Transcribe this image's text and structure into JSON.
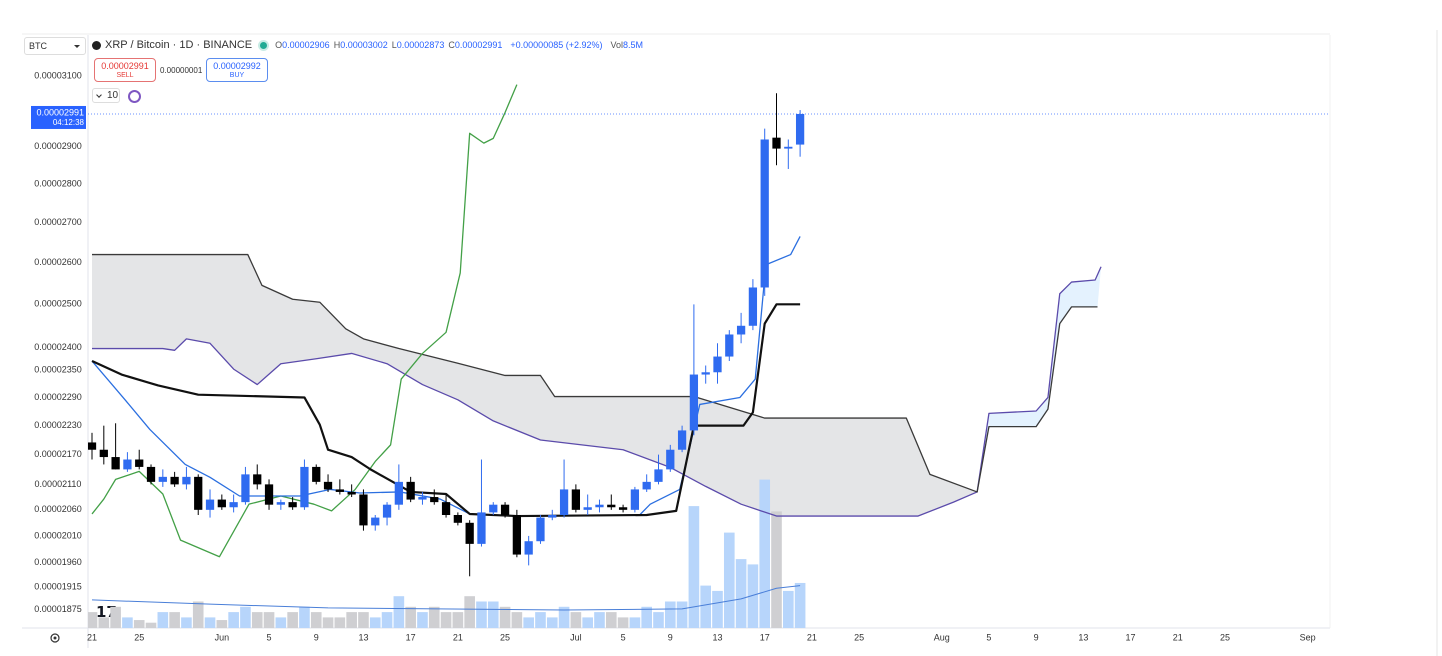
{
  "header": {
    "symbol_select": "BTC",
    "title": "XRP / Bitcoin · 1D · BINANCE",
    "ohlc": [
      {
        "label": "O",
        "value": "0.00002906"
      },
      {
        "label": "H",
        "value": "0.00003002"
      },
      {
        "label": "L",
        "value": "0.00002873"
      },
      {
        "label": "C",
        "value": "0.00002991"
      }
    ],
    "change": "+0.00000085 (+2.92%)",
    "volume": {
      "label": "Vol",
      "value": "8.5M"
    }
  },
  "trade": {
    "sell_price": "0.00002991",
    "sell_label": "SELL",
    "spread": "0.00000001",
    "buy_price": "0.00002992",
    "buy_label": "BUY",
    "indicator_count": "10"
  },
  "chart_data": {
    "type": "candlestick",
    "log_scale": true,
    "grid": false,
    "up_color": "#2f6bf0",
    "down_color": "#000000",
    "volume_up_color": "#b7d5fb",
    "volume_down_color": "#cfcfd2",
    "open": [
      2.195e-05,
      2.18e-05,
      2.165e-05,
      2.14e-05,
      2.16e-05,
      2.145e-05,
      2.115e-05,
      2.125e-05,
      2.11e-05,
      2.125e-05,
      2.06e-05,
      2.08e-05,
      2.065e-05,
      2.075e-05,
      2.13e-05,
      2.11e-05,
      2.07e-05,
      2.075e-05,
      2.065e-05,
      2.145e-05,
      2.115e-05,
      2.1e-05,
      2.095e-05,
      2.09e-05,
      2.03e-05,
      2.045e-05,
      2.07e-05,
      2.115e-05,
      2.08e-05,
      2.085e-05,
      2.075e-05,
      2.05e-05,
      2.035e-05,
      1.995e-05,
      2.055e-05,
      2.07e-05,
      2.05e-05,
      1.975e-05,
      2e-05,
      2.045e-05,
      2.05e-05,
      2.1e-05,
      2.06e-05,
      2.065e-05,
      2.07e-05,
      2.065e-05,
      2.06e-05,
      2.1e-05,
      2.115e-05,
      2.14e-05,
      2.18e-05,
      2.22e-05,
      2.34e-05,
      2.345e-05,
      2.38e-05,
      2.43e-05,
      2.45e-05,
      2.54e-05,
      2.925e-05,
      2.895e-05,
      2.906e-05
    ],
    "high": [
      2.215e-05,
      2.23e-05,
      2.235e-05,
      2.175e-05,
      2.18e-05,
      2.15e-05,
      2.14e-05,
      2.135e-05,
      2.145e-05,
      2.13e-05,
      2.1e-05,
      2.09e-05,
      2.09e-05,
      2.145e-05,
      2.15e-05,
      2.12e-05,
      2.08e-05,
      2.085e-05,
      2.16e-05,
      2.15e-05,
      2.13e-05,
      2.12e-05,
      2.11e-05,
      2.1e-05,
      2.05e-05,
      2.075e-05,
      2.15e-05,
      2.125e-05,
      2.095e-05,
      2.1e-05,
      2.09e-05,
      2.055e-05,
      2.04e-05,
      2.16e-05,
      2.075e-05,
      2.075e-05,
      2.06e-05,
      2.01e-05,
      2.05e-05,
      2.06e-05,
      2.16e-05,
      2.11e-05,
      2.09e-05,
      2.08e-05,
      2.09e-05,
      2.07e-05,
      2.105e-05,
      2.13e-05,
      2.17e-05,
      2.19e-05,
      2.23e-05,
      2.5e-05,
      2.36e-05,
      2.41e-05,
      2.44e-05,
      2.48e-05,
      2.56e-05,
      2.95e-05,
      3.05e-05,
      2.92e-05,
      3.002e-05
    ],
    "low": [
      2.16e-05,
      2.15e-05,
      2.14e-05,
      2.135e-05,
      2.14e-05,
      2.11e-05,
      2.105e-05,
      2.105e-05,
      2.1e-05,
      2.05e-05,
      2.045e-05,
      2.06e-05,
      2.055e-05,
      2.07e-05,
      2.1e-05,
      2.06e-05,
      2.06e-05,
      2.06e-05,
      2.06e-05,
      2.11e-05,
      2.095e-05,
      2.09e-05,
      2.085e-05,
      2.02e-05,
      2.02e-05,
      2.03e-05,
      2.06e-05,
      2.075e-05,
      2.07e-05,
      2.07e-05,
      2.045e-05,
      2.03e-05,
      1.935e-05,
      1.99e-05,
      2.05e-05,
      2.045e-05,
      1.97e-05,
      1.955e-05,
      1.995e-05,
      2.04e-05,
      2.045e-05,
      2.055e-05,
      2.05e-05,
      2.055e-05,
      2.06e-05,
      2.055e-05,
      2.055e-05,
      2.095e-05,
      2.11e-05,
      2.135e-05,
      2.175e-05,
      2.21e-05,
      2.32e-05,
      2.32e-05,
      2.37e-05,
      2.41e-05,
      2.44e-05,
      2.52e-05,
      2.85e-05,
      2.84e-05,
      2.873e-05
    ],
    "close": [
      2.18e-05,
      2.165e-05,
      2.14e-05,
      2.16e-05,
      2.145e-05,
      2.115e-05,
      2.125e-05,
      2.11e-05,
      2.125e-05,
      2.06e-05,
      2.08e-05,
      2.065e-05,
      2.075e-05,
      2.13e-05,
      2.11e-05,
      2.07e-05,
      2.075e-05,
      2.065e-05,
      2.145e-05,
      2.115e-05,
      2.1e-05,
      2.095e-05,
      2.09e-05,
      2.03e-05,
      2.045e-05,
      2.07e-05,
      2.115e-05,
      2.08e-05,
      2.085e-05,
      2.075e-05,
      2.05e-05,
      2.035e-05,
      1.995e-05,
      2.055e-05,
      2.07e-05,
      2.05e-05,
      1.975e-05,
      2e-05,
      2.045e-05,
      2.05e-05,
      2.1e-05,
      2.06e-05,
      2.065e-05,
      2.07e-05,
      2.065e-05,
      2.06e-05,
      2.1e-05,
      2.115e-05,
      2.14e-05,
      2.18e-05,
      2.22e-05,
      2.34e-05,
      2.345e-05,
      2.38e-05,
      2.43e-05,
      2.45e-05,
      2.54e-05,
      2.92e-05,
      2.895e-05,
      2.9e-05,
      2.991e-05
    ],
    "volume": [
      3,
      2,
      4,
      2,
      1.5,
      1,
      3,
      3,
      2,
      5,
      2,
      1.5,
      3,
      4,
      3,
      3,
      2,
      3,
      4,
      3,
      2,
      2,
      3,
      3,
      2,
      3,
      6,
      4,
      3,
      4,
      3,
      3,
      6,
      5,
      5,
      4,
      3,
      2,
      3,
      2,
      4,
      3,
      2,
      3,
      3,
      2,
      2,
      4,
      3,
      5,
      5,
      23,
      8,
      7,
      18,
      13,
      12,
      28,
      22,
      7,
      8.5
    ],
    "volume_lim": [
      0,
      40
    ],
    "ylim": [
      1.843e-05,
      3.222e-05
    ],
    "yticks": [
      {
        "value": 3.1e-05,
        "label": "0.00003100"
      },
      {
        "value": 2.9e-05,
        "label": "0.00002900"
      },
      {
        "value": 2.8e-05,
        "label": "0.00002800"
      },
      {
        "value": 2.7e-05,
        "label": "0.00002700"
      },
      {
        "value": 2.6e-05,
        "label": "0.00002600"
      },
      {
        "value": 2.5e-05,
        "label": "0.00002500"
      },
      {
        "value": 2.4e-05,
        "label": "0.00002400"
      },
      {
        "value": 2.35e-05,
        "label": "0.00002350"
      },
      {
        "value": 2.29e-05,
        "label": "0.00002290"
      },
      {
        "value": 2.23e-05,
        "label": "0.00002230"
      },
      {
        "value": 2.17e-05,
        "label": "0.00002170"
      },
      {
        "value": 2.11e-05,
        "label": "0.00002110"
      },
      {
        "value": 2.06e-05,
        "label": "0.00002060"
      },
      {
        "value": 2.01e-05,
        "label": "0.00002010"
      },
      {
        "value": 1.96e-05,
        "label": "0.00001960"
      },
      {
        "value": 1.915e-05,
        "label": "0.00001915"
      },
      {
        "value": 1.875e-05,
        "label": "0.00001875"
      }
    ],
    "xlim": [
      -0.34,
      104.9
    ],
    "xticks": [
      {
        "value": 0,
        "label": "21"
      },
      {
        "value": 4,
        "label": "25"
      },
      {
        "value": 11,
        "label": "Jun"
      },
      {
        "value": 15,
        "label": "5"
      },
      {
        "value": 19,
        "label": "9"
      },
      {
        "value": 23,
        "label": "13"
      },
      {
        "value": 27,
        "label": "17"
      },
      {
        "value": 31,
        "label": "21"
      },
      {
        "value": 35,
        "label": "25"
      },
      {
        "value": 41,
        "label": "Jul"
      },
      {
        "value": 45,
        "label": "5"
      },
      {
        "value": 49,
        "label": "9"
      },
      {
        "value": 53,
        "label": "13"
      },
      {
        "value": 57,
        "label": "17"
      },
      {
        "value": 61,
        "label": "21"
      },
      {
        "value": 65,
        "label": "25"
      },
      {
        "value": 72,
        "label": "Aug"
      },
      {
        "value": 76,
        "label": "5"
      },
      {
        "value": 80,
        "label": "9"
      },
      {
        "value": 84,
        "label": "13"
      },
      {
        "value": 88,
        "label": "17"
      },
      {
        "value": 92,
        "label": "21"
      },
      {
        "value": 96,
        "label": "25"
      },
      {
        "value": 103,
        "label": "Sep"
      }
    ],
    "last_price": {
      "value": 2.991e-05,
      "countdown": "04:12:38",
      "color": "#2962ff"
    },
    "cloud": {
      "span_a": 0,
      "span_b": 1,
      "up_color": "rgba(33,150,243,0.12)",
      "down_color": "rgba(120,123,134,0.2)"
    },
    "series": [
      {
        "color": "#5b4bab",
        "width": 1.3,
        "x": [
          0,
          6,
          7,
          8,
          10,
          12,
          14,
          16,
          19,
          22,
          25,
          28,
          31,
          34,
          38,
          45,
          49,
          52,
          55,
          58,
          70,
          73,
          75,
          76,
          80,
          81,
          82,
          83,
          85,
          85.5
        ],
        "values": [
          2.398e-05,
          2.398e-05,
          2.394e-05,
          2.42e-05,
          2.41e-05,
          2.352e-05,
          2.318e-05,
          2.364e-05,
          2.375e-05,
          2.387e-05,
          2.364e-05,
          2.318e-05,
          2.285e-05,
          2.24e-05,
          2.2e-05,
          2.18e-05,
          2.144e-05,
          2.106e-05,
          2.071e-05,
          2.048e-05,
          2.048e-05,
          2.075e-05,
          2.095e-05,
          2.256e-05,
          2.261e-05,
          2.29e-05,
          2.525e-05,
          2.553e-05,
          2.558e-05,
          2.59e-05
        ]
      },
      {
        "color": "#3a3a3a",
        "width": 1.3,
        "x": [
          0,
          13.2,
          14.4,
          17,
          19.3,
          21.5,
          23,
          26,
          31,
          35,
          38,
          39.2,
          51,
          57,
          69,
          71,
          75,
          76,
          80,
          81,
          82,
          83,
          85.2
        ],
        "values": [
          2.62e-05,
          2.62e-05,
          2.545e-05,
          2.512e-05,
          2.505e-05,
          2.443e-05,
          2.42e-05,
          2.398e-05,
          2.365e-05,
          2.338e-05,
          2.338e-05,
          2.292e-05,
          2.292e-05,
          2.246e-05,
          2.246e-05,
          2.13e-05,
          2.095e-05,
          2.228e-05,
          2.228e-05,
          2.265e-05,
          2.455e-05,
          2.494e-05,
          2.494e-05
        ]
      },
      {
        "color": "#43a047",
        "width": 1.3,
        "x": [
          0,
          1,
          2,
          4,
          6,
          7.5,
          10.8,
          13.3,
          16,
          18.8,
          20.3,
          22.3,
          24,
          25.3,
          26.2,
          28,
          30,
          31.2,
          32,
          33.2,
          34,
          35,
          36
        ],
        "values": [
          2.052e-05,
          2.081e-05,
          2.12e-05,
          2.136e-05,
          2.091e-05,
          2.002e-05,
          1.971e-05,
          2.071e-05,
          2.087e-05,
          2.071e-05,
          2.058e-05,
          2.1e-05,
          2.156e-05,
          2.19e-05,
          2.33e-05,
          2.387e-05,
          2.435e-05,
          2.575e-05,
          2.937e-05,
          2.91e-05,
          2.923e-05,
          2.995e-05,
          3.075e-05
        ]
      },
      {
        "color": "#2b6fe0",
        "width": 1.3,
        "x": [
          0,
          2.8,
          4.9,
          7.9,
          10,
          12.5,
          17.6,
          20.2,
          22.7,
          26.1,
          29.5,
          32,
          36.3,
          46.4,
          47.3,
          49.8,
          51.5,
          54.9,
          56.2,
          57.1,
          59.2,
          60
        ],
        "values": [
          2.37e-05,
          2.285e-05,
          2.222e-05,
          2.15e-05,
          2.124e-05,
          2.087e-05,
          2.087e-05,
          2.1e-05,
          2.093e-05,
          2.095e-05,
          2.081e-05,
          2.052e-05,
          2.048e-05,
          2.05e-05,
          2.071e-05,
          2.1e-05,
          2.275e-05,
          2.29e-05,
          2.33e-05,
          2.595e-05,
          2.62e-05,
          2.665e-05
        ]
      },
      {
        "color": "#111111",
        "width": 2.2,
        "x": [
          0,
          2.5,
          5.6,
          9,
          18,
          19.3,
          20,
          22,
          23.6,
          27,
          30,
          32,
          36,
          47,
          49.5,
          51,
          55.2,
          56,
          57,
          58,
          60
        ],
        "values": [
          2.37e-05,
          2.34e-05,
          2.316e-05,
          2.296e-05,
          2.29e-05,
          2.232e-05,
          2.18e-05,
          2.165e-05,
          2.14e-05,
          2.095e-05,
          2.091e-05,
          2.052e-05,
          2.048e-05,
          2.05e-05,
          2.058e-05,
          2.23e-05,
          2.23e-05,
          2.258e-05,
          2.455e-05,
          2.5e-05,
          2.5e-05
        ]
      },
      {
        "color": "#4a7fd8",
        "width": 1,
        "axis": "volume",
        "x": [
          0,
          10,
          20,
          40,
          50,
          55,
          58,
          60
        ],
        "values": [
          5.3,
          4.5,
          3.8,
          3.4,
          3.6,
          5.5,
          7.5,
          8
        ]
      }
    ]
  }
}
